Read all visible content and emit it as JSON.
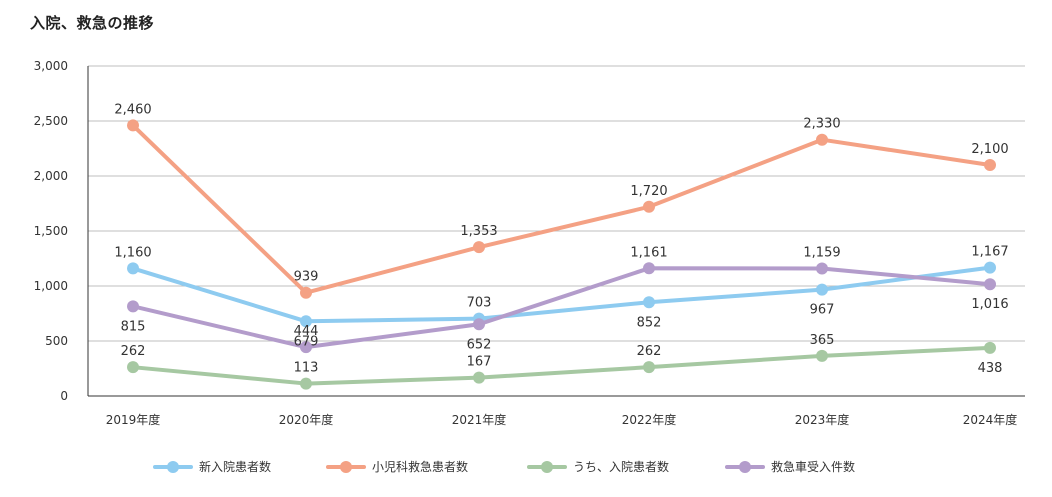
{
  "chart_data": {
    "type": "line",
    "title": "入院、救急の推移",
    "xlabel": "",
    "ylabel": "",
    "ylim": [
      0,
      3000
    ],
    "yticks": [
      "0",
      "500",
      "1,000",
      "1,500",
      "2,000",
      "2,500",
      "3,000"
    ],
    "ytick_values": [
      0,
      500,
      1000,
      1500,
      2000,
      2500,
      3000
    ],
    "categories": [
      "2019年度",
      "2020年度",
      "2021年度",
      "2022年度",
      "2023年度",
      "2024年度"
    ],
    "grid": true,
    "legend_position": "bottom",
    "series": [
      {
        "name": "新入院患者数",
        "color": "#8ecbf0",
        "values": [
          1160,
          679,
          703,
          852,
          967,
          1167
        ],
        "labels": [
          "1,160",
          "679",
          "703",
          "852",
          "967",
          "1,167"
        ]
      },
      {
        "name": "小児科救急患者数",
        "color": "#f4a184",
        "values": [
          2460,
          939,
          1353,
          1720,
          2330,
          2100
        ],
        "labels": [
          "2,460",
          "939",
          "1,353",
          "1,720",
          "2,330",
          "2,100"
        ]
      },
      {
        "name": "うち、入院患者数",
        "color": "#a6c8a2",
        "values": [
          262,
          113,
          167,
          262,
          365,
          438
        ],
        "labels": [
          "262",
          "113",
          "167",
          "262",
          "365",
          "438"
        ]
      },
      {
        "name": "救急車受入件数",
        "color": "#b39ccb",
        "values": [
          815,
          444,
          652,
          1161,
          1159,
          1016
        ],
        "labels": [
          "815",
          "444",
          "652",
          "1,161",
          "1,159",
          "1,016"
        ]
      }
    ]
  }
}
